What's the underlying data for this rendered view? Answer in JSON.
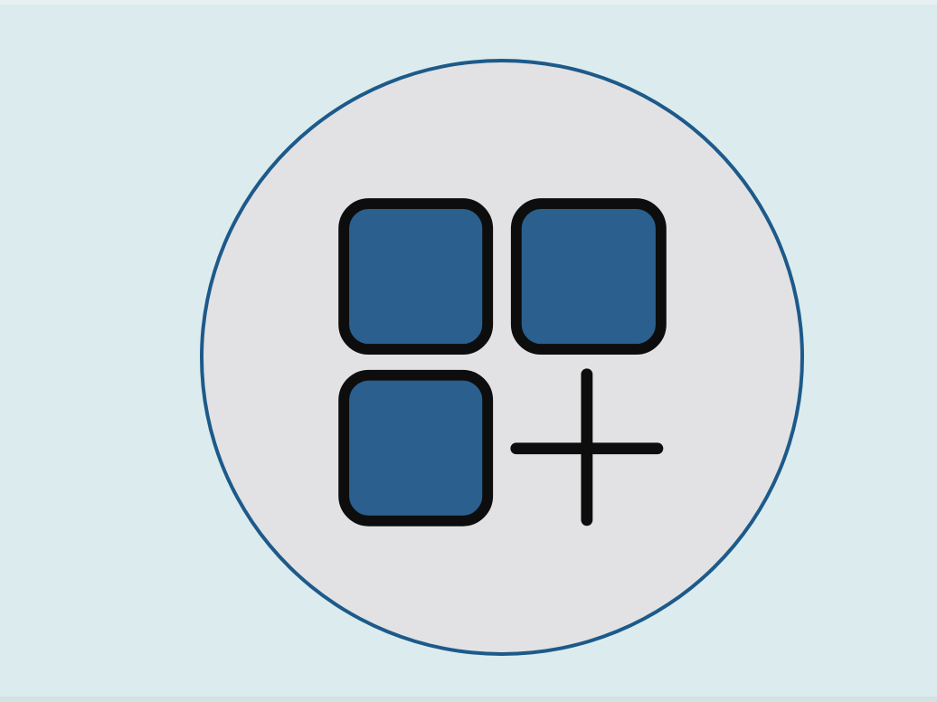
{
  "page": {
    "background": "#dcecee"
  },
  "add_apps_button": {
    "icon": "add-apps-icon",
    "circle_fill": "#e2e2e4",
    "circle_border": "#1d5a8a",
    "tile_fill": "#2a5f8e",
    "tile_stroke": "#0d0d0d"
  }
}
